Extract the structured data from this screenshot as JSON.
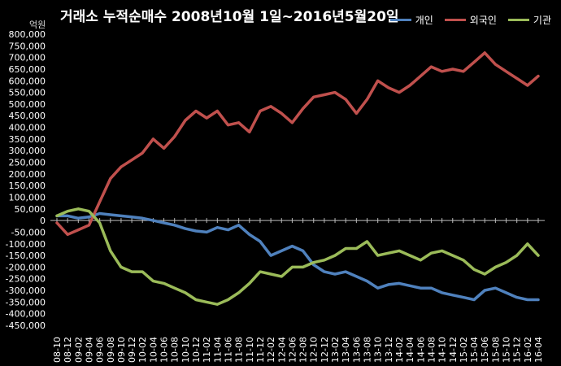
{
  "chart_data": {
    "type": "line",
    "title": "거래소 누적순매수 2008년10월 1일~2016년5월20일",
    "unit_label": "억원",
    "ylim": [
      -450000,
      800000
    ],
    "y_ticks": [
      800000,
      750000,
      700000,
      650000,
      600000,
      550000,
      500000,
      450000,
      400000,
      350000,
      300000,
      250000,
      200000,
      150000,
      100000,
      50000,
      0,
      -50000,
      -100000,
      -150000,
      -200000,
      -250000,
      -300000,
      -350000,
      -400000,
      -450000
    ],
    "y_tick_labels": [
      "800,000",
      "750,000",
      "700,000",
      "650,000",
      "600,000",
      "550,000",
      "500,000",
      "450,000",
      "400,000",
      "350,000",
      "300,000",
      "250,000",
      "200,000",
      "150,000",
      "100,000",
      "50,000",
      "0",
      "-50,000",
      "-100,000",
      "-150,000",
      "-200,000",
      "-250,000",
      "-300,000",
      "-350,000",
      "-400,000",
      "-450,000"
    ],
    "x_categories": [
      "08-10",
      "08-12",
      "09-02",
      "09-04",
      "09-06",
      "09-08",
      "09-10",
      "09-12",
      "10-02",
      "10-04",
      "10-06",
      "10-08",
      "10-10",
      "10-12",
      "11-02",
      "11-04",
      "11-06",
      "11-08",
      "11-10",
      "11-12",
      "12-02",
      "12-04",
      "12-06",
      "12-08",
      "12-10",
      "12-12",
      "13-02",
      "13-04",
      "13-06",
      "13-08",
      "13-10",
      "13-12",
      "14-02",
      "14-04",
      "14-06",
      "14-08",
      "14-10",
      "14-12",
      "15-02",
      "15-04",
      "15-06",
      "15-08",
      "15-10",
      "15-12",
      "16-02",
      "16-04"
    ],
    "grid": false,
    "legend_position": "top-right",
    "series": [
      {
        "name": "개인",
        "color": "#4F81BD",
        "values": [
          20000,
          20000,
          10000,
          15000,
          30000,
          25000,
          20000,
          15000,
          10000,
          0,
          -10000,
          -20000,
          -35000,
          -45000,
          -50000,
          -30000,
          -40000,
          -20000,
          -60000,
          -90000,
          -150000,
          -130000,
          -110000,
          -130000,
          -190000,
          -220000,
          -230000,
          -220000,
          -240000,
          -260000,
          -290000,
          -275000,
          -270000,
          -280000,
          -290000,
          -290000,
          -310000,
          -320000,
          -330000,
          -340000,
          -300000,
          -290000,
          -310000,
          -330000,
          -340000,
          -340000
        ]
      },
      {
        "name": "외국인",
        "color": "#C0504D",
        "values": [
          -10000,
          -60000,
          -40000,
          -20000,
          80000,
          180000,
          230000,
          260000,
          290000,
          350000,
          310000,
          360000,
          430000,
          470000,
          440000,
          470000,
          410000,
          420000,
          380000,
          470000,
          490000,
          460000,
          420000,
          480000,
          530000,
          540000,
          550000,
          520000,
          460000,
          520000,
          600000,
          570000,
          550000,
          580000,
          620000,
          660000,
          640000,
          650000,
          640000,
          680000,
          720000,
          670000,
          640000,
          610000,
          580000,
          620000
        ]
      },
      {
        "name": "기관",
        "color": "#9BBB59",
        "values": [
          20000,
          40000,
          50000,
          40000,
          -10000,
          -130000,
          -200000,
          -220000,
          -220000,
          -260000,
          -270000,
          -290000,
          -310000,
          -340000,
          -350000,
          -360000,
          -340000,
          -310000,
          -270000,
          -220000,
          -230000,
          -240000,
          -200000,
          -200000,
          -180000,
          -170000,
          -150000,
          -120000,
          -120000,
          -90000,
          -150000,
          -140000,
          -130000,
          -150000,
          -170000,
          -140000,
          -130000,
          -150000,
          -170000,
          -210000,
          -230000,
          -200000,
          -180000,
          -150000,
          -100000,
          -150000
        ]
      }
    ]
  }
}
